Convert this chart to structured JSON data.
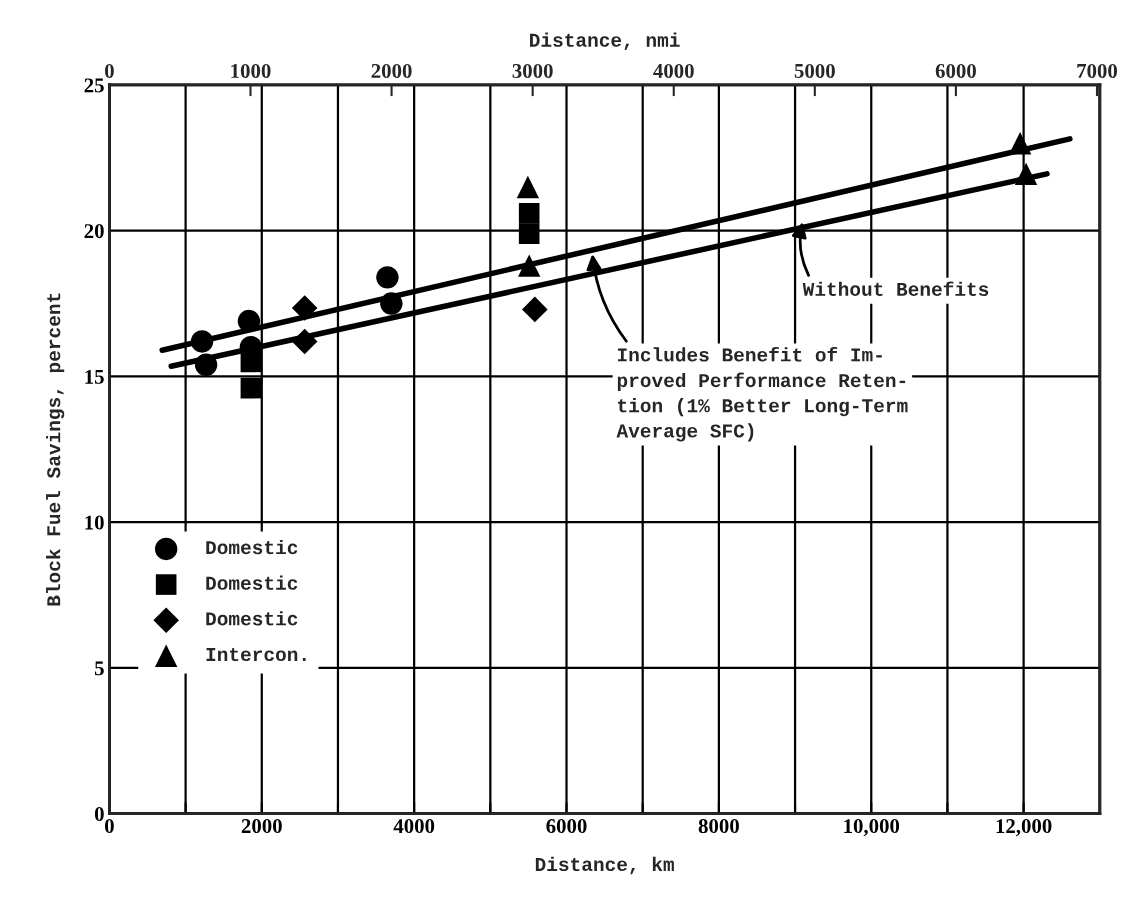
{
  "chart_data": {
    "type": "scatter",
    "xlabel": "Distance, km",
    "ylabel": "Block Fuel Savings, percent",
    "x2label": "Distance, nmi",
    "xlim": [
      0,
      13000
    ],
    "ylim": [
      0,
      25
    ],
    "x2lim": [
      0,
      7020
    ],
    "xticks": [
      0,
      {
        "value": 1000,
        "label": null
      },
      2000,
      {
        "value": 3000,
        "label": null
      },
      4000,
      {
        "value": 5000,
        "label": null
      },
      6000,
      {
        "value": 7000,
        "label": null
      },
      8000,
      {
        "value": 9000,
        "label": null
      },
      {
        "value": 10000,
        "label": "10,000"
      },
      {
        "value": 11000,
        "label": null
      },
      {
        "value": 12000,
        "label": "12,000"
      }
    ],
    "x2ticks": [
      0,
      1000,
      2000,
      3000,
      4000,
      5000,
      6000,
      7000
    ],
    "yticks": [
      0,
      5,
      10,
      15,
      20,
      25
    ],
    "grid": true,
    "legend": "bottom left",
    "series": [
      {
        "name": "Domestic",
        "marker": "circle",
        "color": "#000000",
        "x": [
          1216,
          1269,
          1831,
          1857,
          3649,
          3701
        ],
        "values": [
          16.2,
          15.4,
          16.9,
          16.0,
          18.4,
          17.5
        ]
      },
      {
        "name": "Domestic",
        "marker": "square",
        "color": "#000000",
        "x": [
          1857,
          1857,
          5510,
          5510
        ],
        "values": [
          15.5,
          14.6,
          20.6,
          19.9
        ]
      },
      {
        "name": "Domestic",
        "marker": "diamond",
        "color": "#000000",
        "x": [
          2563,
          2563,
          5584
        ],
        "values": [
          17.35,
          16.2,
          17.3
        ]
      },
      {
        "name": "Intercon.",
        "marker": "triangle",
        "color": "#000000",
        "x": [
          5493,
          5510,
          11954,
          12032
        ],
        "values": [
          21.5,
          18.8,
          23.0,
          21.95
        ]
      },
      {
        "type": "line",
        "marker": "none",
        "color": "#000000",
        "x": [
          693,
          12607
        ],
        "values": [
          15.9,
          23.15
        ]
      },
      {
        "type": "line",
        "marker": "none",
        "color": "#000000",
        "x": [
          811,
          12306
        ],
        "values": [
          15.35,
          21.95
        ]
      }
    ],
    "annotations": [
      {
        "text": "Without Benefits",
        "x": 9100,
        "y": 20.3
      },
      {
        "text": "Includes Benefit of Im-\nproved Performance Reten-\ntion (1% Better Long-Term\nAverage SFC)",
        "x": 6340,
        "y": 19.2
      }
    ]
  }
}
